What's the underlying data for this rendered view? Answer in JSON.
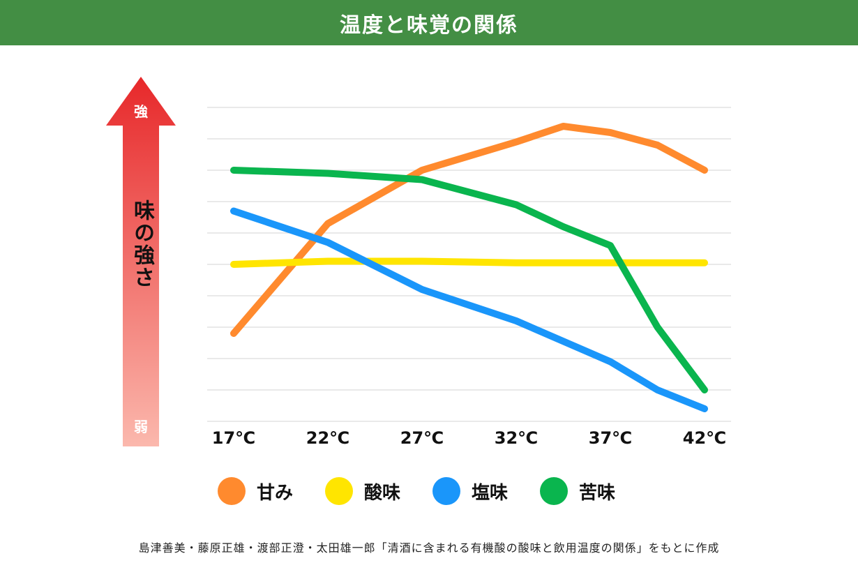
{
  "header": {
    "title": "温度と味覚の関係"
  },
  "y_axis": {
    "label": "味の強さ",
    "top_label": "強",
    "bottom_label": "弱"
  },
  "colors": {
    "header_bg": "#438e44",
    "sweet": "#ff8a2e",
    "sour": "#ffe500",
    "salty": "#1a96fa",
    "bitter": "#0ab54e",
    "arrow_top": "#e7282a",
    "arrow_bottom": "#fbb8ad",
    "grid": "#e2e2e2"
  },
  "x_ticks": [
    "17℃",
    "22℃",
    "27℃",
    "32℃",
    "37℃",
    "42℃"
  ],
  "legend": [
    {
      "label": "甘み",
      "key": "sweet"
    },
    {
      "label": "酸味",
      "key": "sour"
    },
    {
      "label": "塩味",
      "key": "salty"
    },
    {
      "label": "苦味",
      "key": "bitter"
    }
  ],
  "footnote": "島津善美・藤原正雄・渡部正澄・太田雄一郎「清酒に含まれる有機酸の酸味と飲用温度の関係」をもとに作成",
  "chart_data": {
    "type": "line",
    "title": "温度と味覚の関係",
    "xlabel": "温度",
    "ylabel": "味の強さ（弱→強）",
    "categories": [
      "17℃",
      "22℃",
      "27℃",
      "32℃",
      "37℃",
      "42℃"
    ],
    "ylim": [
      0,
      10
    ],
    "grid": true,
    "legend_position": "bottom",
    "series": [
      {
        "name": "甘み",
        "color": "#ff8a2e",
        "x": [
          17,
          22,
          27,
          32,
          34.5,
          37,
          39.5,
          42
        ],
        "values": [
          2.8,
          6.3,
          8.0,
          8.9,
          9.4,
          9.2,
          8.8,
          8.0
        ]
      },
      {
        "name": "酸味",
        "color": "#ffe500",
        "x": [
          17,
          22,
          27,
          32,
          37,
          42
        ],
        "values": [
          5.0,
          5.1,
          5.1,
          5.05,
          5.05,
          5.05
        ]
      },
      {
        "name": "塩味",
        "color": "#1a96fa",
        "x": [
          17,
          22,
          27,
          32,
          37,
          39.5,
          42
        ],
        "values": [
          6.7,
          5.7,
          4.2,
          3.2,
          1.9,
          1.0,
          0.4
        ]
      },
      {
        "name": "苦味",
        "color": "#0ab54e",
        "x": [
          17,
          22,
          27,
          32,
          34.5,
          37,
          39.5,
          42
        ],
        "values": [
          8.0,
          7.9,
          7.7,
          6.9,
          6.2,
          5.6,
          3.0,
          1.0
        ]
      }
    ]
  }
}
